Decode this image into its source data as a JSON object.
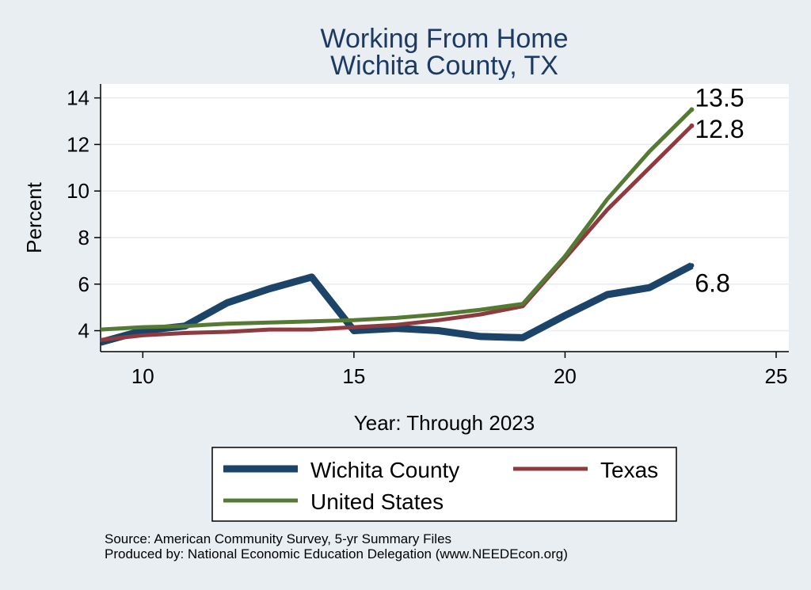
{
  "chart_data": {
    "type": "line",
    "title": [
      "Working From Home",
      "Wichita County, TX"
    ],
    "xlabel": "Year: Through 2023",
    "ylabel": "Percent",
    "xlim": [
      9,
      25.3
    ],
    "ylim": [
      3.1,
      14.6
    ],
    "xticks": [
      10,
      15,
      20,
      25
    ],
    "yticks": [
      4,
      6,
      8,
      10,
      12,
      14
    ],
    "grid": true,
    "legend_position": "bottom",
    "series": [
      {
        "name": "Wichita County",
        "color": "#1b4468",
        "width": 9,
        "x": [
          9,
          10,
          11,
          12,
          13,
          14,
          15,
          16,
          17,
          18,
          19,
          20,
          21,
          22,
          23
        ],
        "y": [
          3.5,
          4.0,
          4.2,
          5.2,
          5.8,
          6.3,
          4.0,
          4.1,
          4.0,
          3.75,
          3.7,
          4.65,
          5.55,
          5.85,
          6.8
        ],
        "end_label": "6.8"
      },
      {
        "name": "Texas",
        "color": "#8e3b3f",
        "width": 5,
        "x": [
          9,
          10,
          11,
          12,
          13,
          14,
          15,
          16,
          17,
          18,
          19,
          20,
          21,
          22,
          23
        ],
        "y": [
          3.6,
          3.8,
          3.9,
          3.95,
          4.05,
          4.05,
          4.15,
          4.25,
          4.45,
          4.7,
          5.05,
          7.1,
          9.2,
          11.0,
          12.8
        ],
        "end_label": "12.8"
      },
      {
        "name": "United States",
        "color": "#557a34",
        "width": 5,
        "x": [
          9,
          10,
          11,
          12,
          13,
          14,
          15,
          16,
          17,
          18,
          19,
          20,
          21,
          22,
          23
        ],
        "y": [
          4.05,
          4.15,
          4.2,
          4.3,
          4.35,
          4.4,
          4.45,
          4.55,
          4.7,
          4.9,
          5.15,
          7.2,
          9.65,
          11.7,
          13.5
        ],
        "end_label": "13.5"
      }
    ]
  },
  "source": {
    "line1": "Source: American Community Survey, 5-yr Summary Files",
    "line2": "Produced by: National Economic Education Delegation (www.NEEDEcon.org)"
  }
}
